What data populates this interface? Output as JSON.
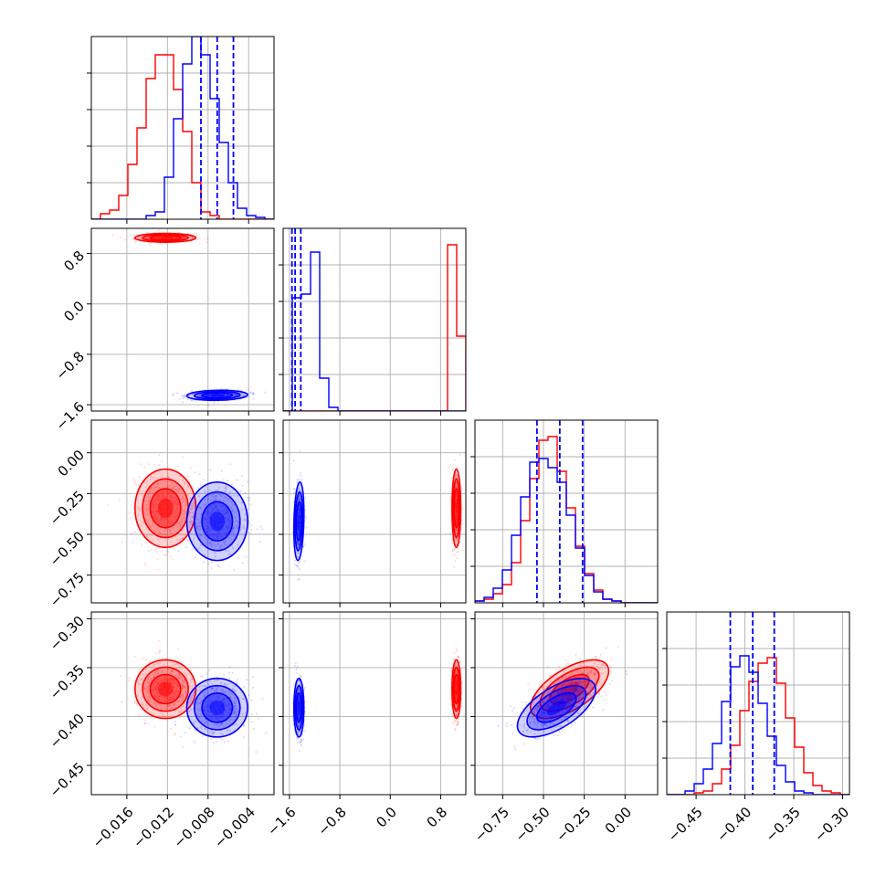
{
  "chart_data": {
    "type": "corner",
    "grid": true,
    "parameters": [
      {
        "range": [
          -0.0195,
          -0.0015
        ],
        "ticks": [
          -0.016,
          -0.012,
          -0.008,
          -0.004
        ],
        "tick_labels": [
          "−0.016",
          "−0.012",
          "−0.008",
          "−0.004"
        ]
      },
      {
        "range": [
          -1.7,
          1.2
        ],
        "ticks": [
          -1.6,
          -0.8,
          0.0,
          0.8
        ],
        "tick_labels": [
          "−1.6",
          "−0.8",
          "0.0",
          "0.8"
        ]
      },
      {
        "range": [
          -0.92,
          0.2
        ],
        "ticks": [
          -0.75,
          -0.5,
          -0.25,
          0.0
        ],
        "tick_labels": [
          "−0.75",
          "−0.50",
          "−0.25",
          "0.00"
        ]
      },
      {
        "range": [
          -0.48,
          -0.293
        ],
        "ticks": [
          -0.45,
          -0.4,
          -0.35,
          -0.3
        ],
        "tick_labels": [
          "−0.45",
          "−0.40",
          "−0.35",
          "−0.30"
        ]
      }
    ],
    "series": [
      {
        "color": "#ff0000",
        "means": [
          -0.0122,
          1.05,
          -0.34,
          -0.372
        ],
        "sigmas": [
          0.0015,
          0.035,
          0.12,
          0.015
        ],
        "correlations": {
          "0-1": 0.0,
          "0-2": 0.0,
          "0-3": 0.0,
          "1-2": 0.0,
          "1-3": 0.0,
          "2-3": 0.62
        },
        "histograms": [
          [
            0,
            0.03,
            0.05,
            0.13,
            0.3,
            0.5,
            0.77,
            0.9,
            0.9,
            0.71,
            0.48,
            0.2,
            0.04,
            0.02,
            0,
            0,
            0,
            0,
            0,
            0
          ],
          [
            0,
            0,
            0,
            0,
            0,
            0,
            0,
            0,
            0,
            0,
            0,
            0,
            0,
            0,
            0,
            0,
            0,
            0,
            0.91,
            0.41
          ],
          [
            0.01,
            0.02,
            0.05,
            0.1,
            0.22,
            0.45,
            0.68,
            0.89,
            0.91,
            0.72,
            0.52,
            0.31,
            0.16,
            0.07,
            0.02,
            0.01,
            0,
            0,
            0,
            0
          ],
          [
            0,
            0,
            0,
            0.01,
            0.02,
            0.06,
            0.14,
            0.27,
            0.46,
            0.62,
            0.72,
            0.75,
            0.61,
            0.42,
            0.26,
            0.12,
            0.05,
            0.02,
            0.01,
            0
          ]
        ]
      },
      {
        "color": "#0000ff",
        "means": [
          -0.0071,
          -1.45,
          -0.42,
          -0.391
        ],
        "sigmas": [
          0.0015,
          0.04,
          0.12,
          0.015
        ],
        "correlations": {
          "0-1": 0.1,
          "0-2": 0.0,
          "0-3": 0.0,
          "1-2": 0.2,
          "1-3": 0.0,
          "2-3": 0.62
        },
        "histograms": [
          [
            0,
            0,
            0,
            0,
            0,
            0,
            0.02,
            0.04,
            0.23,
            0.55,
            0.85,
            1.0,
            0.9,
            0.66,
            0.42,
            0.2,
            0.06,
            0.02,
            0.01,
            0
          ],
          [
            0,
            0.62,
            0.64,
            0.87,
            0.18,
            0.02,
            0,
            0,
            0,
            0,
            0,
            0,
            0,
            0,
            0,
            0,
            0,
            0,
            0,
            0
          ],
          [
            0.01,
            0.03,
            0.08,
            0.18,
            0.37,
            0.58,
            0.77,
            0.79,
            0.74,
            0.66,
            0.48,
            0.3,
            0.15,
            0.06,
            0.02,
            0.01,
            0,
            0,
            0,
            0
          ],
          [
            0,
            0,
            0.02,
            0.06,
            0.14,
            0.28,
            0.51,
            0.7,
            0.76,
            0.67,
            0.5,
            0.32,
            0.16,
            0.07,
            0.02,
            0.01,
            0,
            0,
            0,
            0
          ]
        ],
        "quantiles": [
          [
            -0.0087,
            -0.0071,
            -0.0055
          ],
          [
            -1.56,
            -1.51,
            -1.42
          ],
          [
            -0.54,
            -0.4,
            -0.26
          ],
          [
            -0.415,
            -0.392,
            -0.37
          ]
        ]
      }
    ]
  }
}
